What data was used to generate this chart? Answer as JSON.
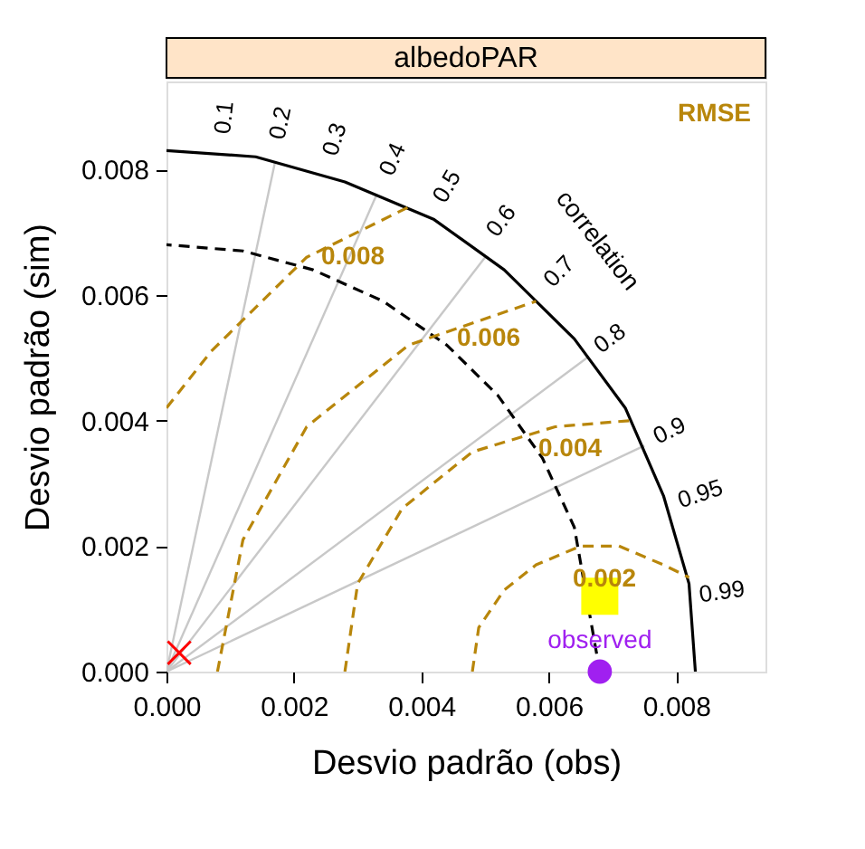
{
  "chart_data": {
    "type": "scatter",
    "title": "albedoPAR",
    "xlabel": "Desvio padrão (obs)",
    "ylabel": "Desvio padrão (sim)",
    "xlim": [
      0,
      0.0094
    ],
    "ylim": [
      0,
      0.0094
    ],
    "xticks": [
      {
        "value": 0,
        "label": "0.000"
      },
      {
        "value": 0.002,
        "label": "0.002"
      },
      {
        "value": 0.004,
        "label": "0.004"
      },
      {
        "value": 0.006,
        "label": "0.006"
      },
      {
        "value": 0.008,
        "label": "0.008"
      }
    ],
    "yticks": [
      {
        "value": 0,
        "label": "0.000"
      },
      {
        "value": 0.002,
        "label": "0.002"
      },
      {
        "value": 0.004,
        "label": "0.004"
      },
      {
        "value": 0.006,
        "label": "0.006"
      },
      {
        "value": 0.008,
        "label": "0.008"
      }
    ],
    "series": [
      {
        "type": "line",
        "color": "#c8c8c8",
        "line_style": "solid",
        "x": [
          0,
          0.0017
        ],
        "values": [
          0,
          0.0081
        ]
      },
      {
        "type": "line",
        "color": "#c8c8c8",
        "line_style": "solid",
        "x": [
          0,
          0.0033
        ],
        "values": [
          0,
          0.0076
        ]
      },
      {
        "type": "line",
        "color": "#c8c8c8",
        "line_style": "solid",
        "x": [
          0,
          0.005
        ],
        "values": [
          0,
          0.0066
        ]
      },
      {
        "type": "line",
        "color": "#c8c8c8",
        "line_style": "solid",
        "x": [
          0,
          0.0066
        ],
        "values": [
          0,
          0.005
        ]
      },
      {
        "type": "line",
        "color": "#c8c8c8",
        "line_style": "solid",
        "x": [
          0,
          0.0075
        ],
        "values": [
          0,
          0.0036
        ]
      },
      {
        "type": "line",
        "color": "#000000",
        "line_style": "solid",
        "x": [
          0.0083,
          0.0082,
          0.0078,
          0.0072,
          0.0064,
          0.0053,
          0.0042,
          0.0028,
          0.0014,
          0
        ],
        "values": [
          0,
          0.0014,
          0.0028,
          0.0042,
          0.0053,
          0.0064,
          0.0072,
          0.0078,
          0.0082,
          0.0083
        ]
      },
      {
        "type": "line",
        "color": "#000000",
        "line_style": "dashed",
        "x": [
          0.0068,
          0.0064,
          0.0059,
          0.0052,
          0.0044,
          0.0034,
          0.0023,
          0.0012,
          0
        ],
        "values": [
          0,
          0.0023,
          0.0034,
          0.0044,
          0.0052,
          0.0059,
          0.0064,
          0.0067,
          0.0068
        ]
      },
      {
        "type": "line",
        "color": "#b8860b",
        "line_style": "dashed",
        "x": [
          0.0048,
          0.0049,
          0.0053,
          0.0058,
          0.0065,
          0.0071,
          0.0078,
          0.0082
        ],
        "values": [
          0,
          0.0007,
          0.0013,
          0.0017,
          0.002,
          0.002,
          0.0017,
          0.0015
        ]
      },
      {
        "type": "line",
        "color": "#b8860b",
        "line_style": "dashed",
        "x": [
          0.0028,
          0.003,
          0.0037,
          0.0048,
          0.0061,
          0.0073
        ],
        "values": [
          0,
          0.0014,
          0.0026,
          0.0035,
          0.0039,
          0.004
        ]
      },
      {
        "type": "line",
        "color": "#b8860b",
        "line_style": "dashed",
        "x": [
          0.0008,
          0.0012,
          0.0022,
          0.0038,
          0.0058
        ],
        "values": [
          0,
          0.0021,
          0.0039,
          0.0052,
          0.0059
        ]
      },
      {
        "type": "line",
        "color": "#b8860b",
        "line_style": "dashed",
        "x": [
          0,
          0.0007,
          0.0022,
          0.0038
        ],
        "values": [
          0.0042,
          0.0051,
          0.0066,
          0.0074
        ]
      },
      {
        "name": "observed",
        "color": "#a020f0",
        "marker": "circle",
        "x": [
          0.0068
        ],
        "values": [
          0
        ]
      },
      {
        "color": "#ffff00",
        "marker": "square",
        "x": [
          0.0068
        ],
        "values": [
          0.0012
        ]
      },
      {
        "color": "#ff0000",
        "marker": "cross",
        "x": [
          0.0002
        ],
        "values": [
          0.0003
        ]
      }
    ],
    "annotations": [
      "RMSE",
      "correlation",
      "0.002",
      "0.004",
      "0.006",
      "0.008",
      "0.1",
      "0.2",
      "0.3",
      "0.4",
      "0.5",
      "0.6",
      "0.7",
      "0.8",
      "0.9",
      "0.95",
      "0.99"
    ],
    "grid": false,
    "legend": false
  }
}
